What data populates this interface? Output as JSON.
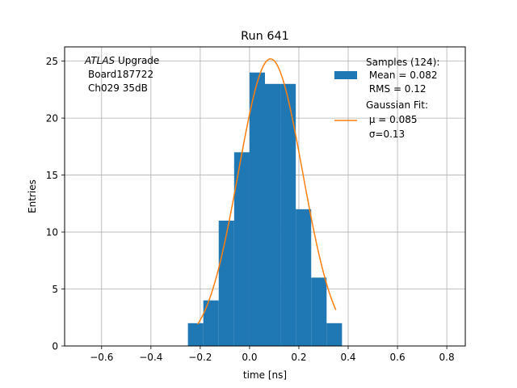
{
  "chart_data": {
    "type": "bar",
    "title": "Run 641",
    "xlabel": "time [ns]",
    "ylabel": "Entries",
    "xlim": [
      -0.75,
      0.875
    ],
    "ylim": [
      0,
      26.25
    ],
    "grid": true,
    "x_ticks": [
      -0.6,
      -0.4,
      -0.2,
      0.0,
      0.2,
      0.4,
      0.6,
      0.8
    ],
    "x_tick_labels": [
      "−0.6",
      "−0.4",
      "−0.2",
      "0.0",
      "0.2",
      "0.4",
      "0.6",
      "0.8"
    ],
    "y_ticks": [
      0,
      5,
      10,
      15,
      20,
      25
    ],
    "y_tick_labels": [
      "0",
      "5",
      "10",
      "15",
      "20",
      "25"
    ],
    "annotation": {
      "line1_italic": "ATLAS",
      "line1_rest": " Upgrade",
      "line2": "Board187722",
      "line3": "Ch029 35dB"
    },
    "histogram": {
      "name": "Samples (124):",
      "color": "#1f77b4",
      "bin_edges": [
        -0.25,
        -0.1875,
        -0.125,
        -0.0625,
        0.0,
        0.0625,
        0.125,
        0.1875,
        0.25,
        0.3125,
        0.375
      ],
      "bin_width": 0.0625,
      "bins": [
        {
          "x0": -0.25,
          "x1": -0.1875,
          "count": 2
        },
        {
          "x0": -0.1875,
          "x1": -0.125,
          "count": 4
        },
        {
          "x0": -0.125,
          "x1": -0.0625,
          "count": 11
        },
        {
          "x0": -0.0625,
          "x1": 0.0,
          "count": 17
        },
        {
          "x0": 0.0,
          "x1": 0.0625,
          "count": 24
        },
        {
          "x0": 0.0625,
          "x1": 0.125,
          "count": 23
        },
        {
          "x0": 0.125,
          "x1": 0.1875,
          "count": 23
        },
        {
          "x0": 0.1875,
          "x1": 0.25,
          "count": 12
        },
        {
          "x0": 0.25,
          "x1": 0.3125,
          "count": 6
        },
        {
          "x0": 0.3125,
          "x1": 0.375,
          "count": 2
        }
      ]
    },
    "fit": {
      "name": "Gaussian Fit:",
      "color": "#ff7f0e",
      "amplitude": 25.2,
      "mu": 0.085,
      "sigma": 0.13,
      "x_range": [
        -0.21,
        0.35
      ]
    },
    "legend": {
      "position": "top-right",
      "hist_lines": [
        "Samples (124):",
        " Mean = 0.082",
        " RMS = 0.12"
      ],
      "fit_lines": [
        "Gaussian Fit:",
        " μ = 0.085",
        " σ=0.13"
      ]
    }
  }
}
